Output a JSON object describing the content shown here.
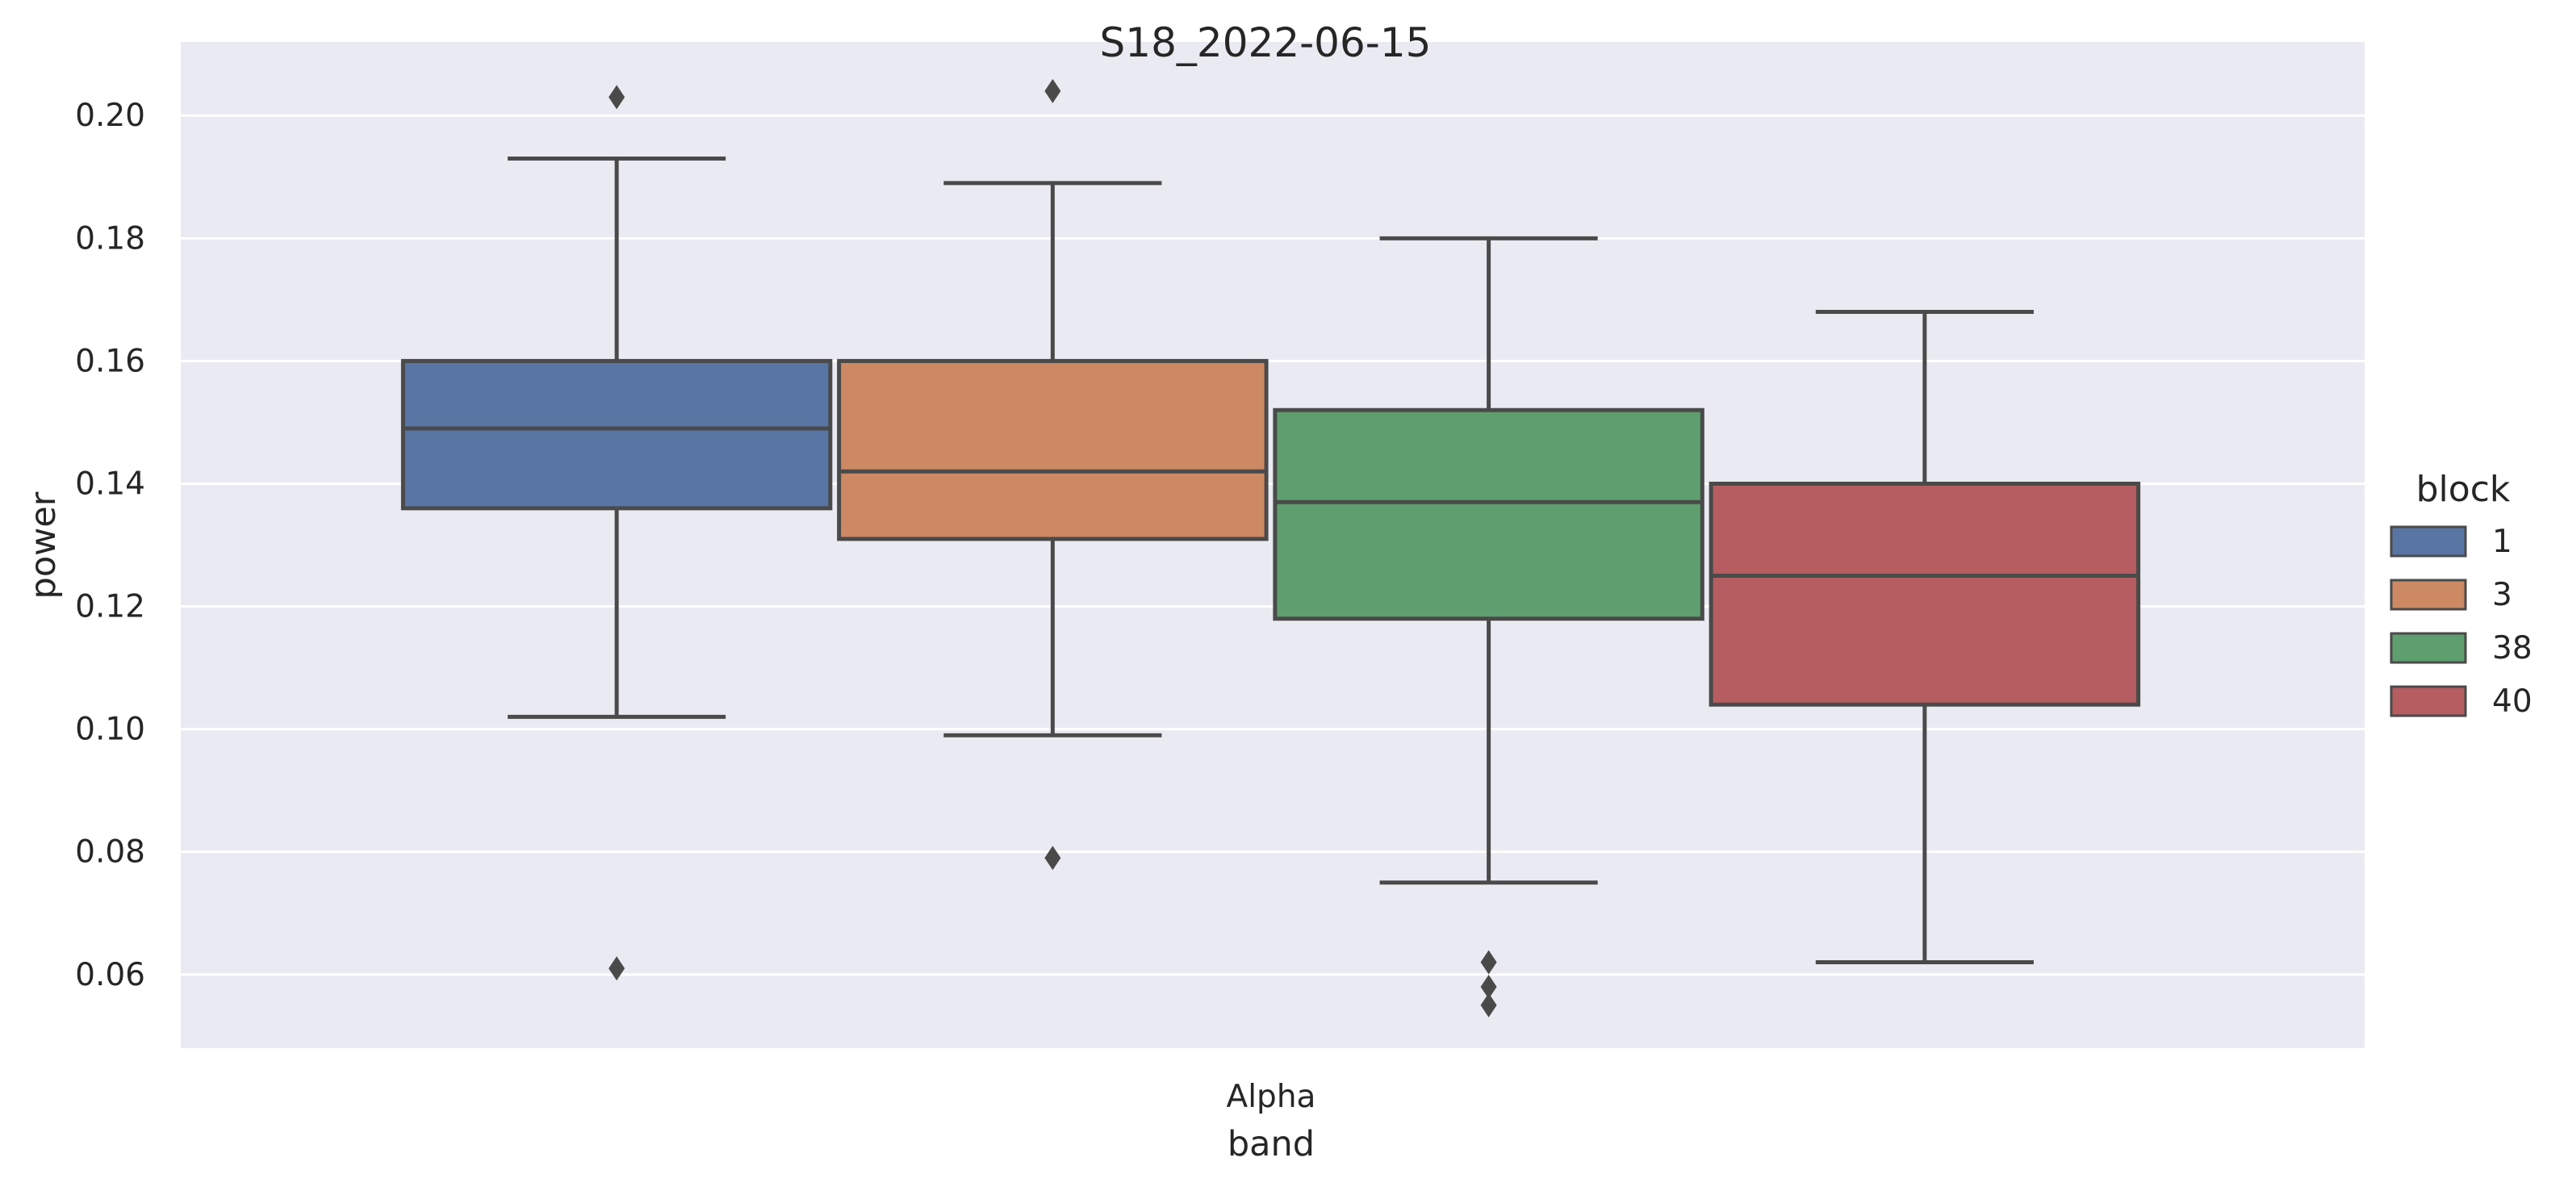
{
  "chart_data": {
    "type": "box",
    "title": "S18_2022-06-15",
    "xlabel": "band",
    "ylabel": "power",
    "categories": [
      "Alpha"
    ],
    "ylim": [
      0.048,
      0.212
    ],
    "yticks": [
      0.06,
      0.08,
      0.1,
      0.12,
      0.14,
      0.16,
      0.18,
      0.2
    ],
    "ytick_labels": [
      "0.06",
      "0.08",
      "0.10",
      "0.12",
      "0.14",
      "0.16",
      "0.18",
      "0.20"
    ],
    "grid": true,
    "legend": {
      "title": "block",
      "placement": "right"
    },
    "series": [
      {
        "name": "1",
        "color": "#5875a4",
        "whisker_low": 0.102,
        "q1": 0.136,
        "median": 0.149,
        "q3": 0.16,
        "whisker_high": 0.193,
        "outliers": [
          0.203,
          0.061
        ]
      },
      {
        "name": "3",
        "color": "#cc8963",
        "whisker_low": 0.099,
        "q1": 0.131,
        "median": 0.142,
        "q3": 0.16,
        "whisker_high": 0.189,
        "outliers": [
          0.204,
          0.079
        ]
      },
      {
        "name": "38",
        "color": "#5f9e6e",
        "whisker_low": 0.075,
        "q1": 0.118,
        "median": 0.137,
        "q3": 0.152,
        "whisker_high": 0.18,
        "outliers": [
          0.062,
          0.058,
          0.055
        ]
      },
      {
        "name": "40",
        "color": "#b55d60",
        "whisker_low": 0.062,
        "q1": 0.104,
        "median": 0.125,
        "q3": 0.14,
        "whisker_high": 0.168,
        "outliers": []
      }
    ]
  }
}
